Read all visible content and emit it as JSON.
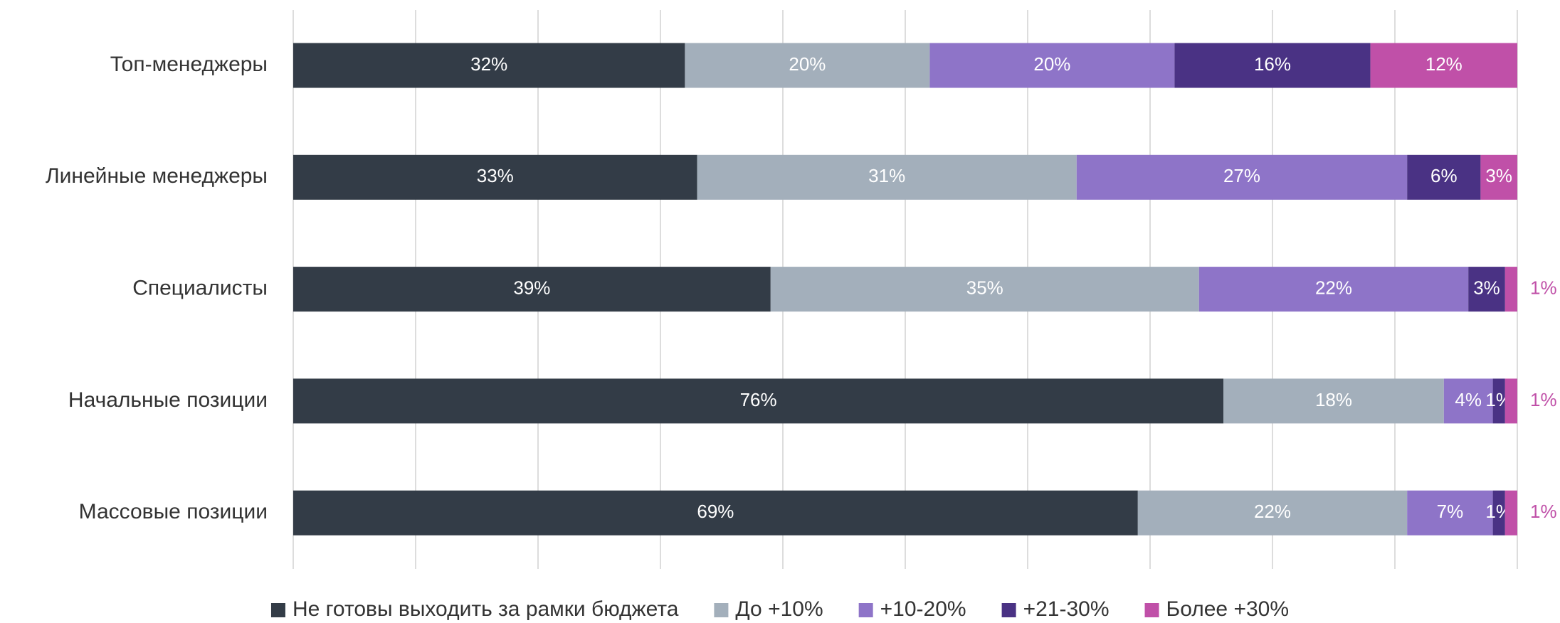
{
  "chart_data": {
    "type": "stacked_bar_horizontal",
    "categories": [
      "Топ-менеджеры",
      "Линейные менеджеры",
      "Специалисты",
      "Начальные позиции",
      "Массовые позиции"
    ],
    "series": [
      {
        "name": "Не готовы выходить за рамки бюджета",
        "color": "#333c47",
        "values": [
          32,
          33,
          39,
          76,
          69
        ],
        "value_labels": [
          "32%",
          "33%",
          "39%",
          "76%",
          "69%"
        ]
      },
      {
        "name": "До +10%",
        "color": "#a3afbb",
        "values": [
          20,
          31,
          35,
          18,
          22
        ],
        "value_labels": [
          "20%",
          "31%",
          "35%",
          "18%",
          "22%"
        ]
      },
      {
        "name": "+10-20%",
        "color": "#8e74c8",
        "values": [
          20,
          27,
          22,
          4,
          7
        ],
        "value_labels": [
          "20%",
          "27%",
          "22%",
          "4%",
          "7%"
        ]
      },
      {
        "name": "+21-30%",
        "color": "#4a3284",
        "values": [
          16,
          6,
          3,
          1,
          1
        ],
        "value_labels": [
          "16%",
          "6%",
          "3%",
          "1%",
          "1%"
        ]
      },
      {
        "name": "Более +30%",
        "color": "#c050a8",
        "values": [
          12,
          3,
          1,
          1,
          1
        ],
        "value_labels": [
          "12%",
          "3%",
          "1%",
          "1%",
          "1%"
        ]
      }
    ],
    "xlim": [
      0,
      100
    ],
    "xticks": [
      0,
      10,
      20,
      30,
      40,
      50,
      60,
      70,
      80,
      90,
      100
    ],
    "grid": true,
    "legend": "bottom"
  }
}
